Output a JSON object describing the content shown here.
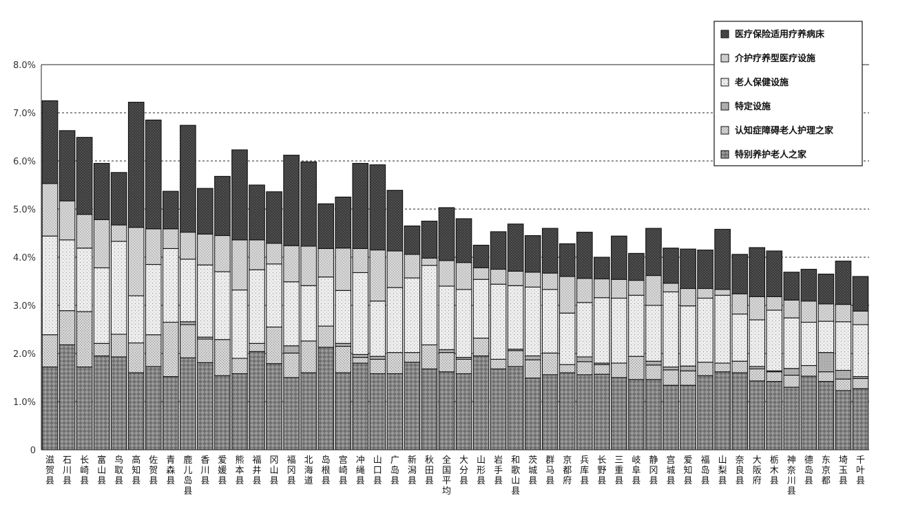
{
  "chart_data": {
    "type": "bar",
    "stacked": true,
    "categories": [
      "滋贺县",
      "石川县",
      "长崎县",
      "富山县",
      "鸟取县",
      "高知县",
      "佐贺县",
      "青森县",
      "鹿儿岛县",
      "香川县",
      "爱媛县",
      "熊本县",
      "福井县",
      "冈山县",
      "福冈县",
      "北海道",
      "岛根县",
      "宫崎县",
      "冲绳县",
      "山口县",
      "广岛县",
      "新潟县",
      "秋田县",
      "全国平均",
      "大分县",
      "山形县",
      "岩手县",
      "和歌山县",
      "茨城县",
      "群马县",
      "京都府",
      "兵库县",
      "长野县",
      "三重县",
      "岐阜县",
      "静冈县",
      "宫城县",
      "爱知县",
      "福岛县",
      "山梨县",
      "奈良县",
      "大阪府",
      "栃木县",
      "神奈川县",
      "德岛县",
      "东京都",
      "埼玉县",
      "千叶县"
    ],
    "series": [
      {
        "name": "特别养护老人之家",
        "color": "#8f8f8f",
        "pattern": "diamond",
        "values": [
          1.72,
          2.18,
          1.72,
          1.95,
          1.93,
          1.6,
          1.73,
          1.52,
          1.91,
          1.81,
          1.54,
          1.58,
          2.04,
          1.79,
          1.5,
          1.6,
          2.13,
          1.6,
          1.8,
          1.58,
          1.58,
          1.82,
          1.68,
          1.62,
          1.58,
          1.95,
          1.68,
          1.73,
          1.49,
          1.56,
          1.6,
          1.56,
          1.57,
          1.5,
          1.46,
          1.46,
          1.34,
          1.34,
          1.54,
          1.62,
          1.6,
          1.43,
          1.42,
          1.3,
          1.53,
          1.42,
          1.23,
          1.27
        ]
      },
      {
        "name": "认知症障碍老人护理之家",
        "color": "#c9c9c9",
        "pattern": "fine",
        "values": [
          0.67,
          0.71,
          1.15,
          0.26,
          0.47,
          0.62,
          0.66,
          1.13,
          0.69,
          0.49,
          0.75,
          0.32,
          0.17,
          0.76,
          0.51,
          0.66,
          0.44,
          0.55,
          0.12,
          0.3,
          0.44,
          0.2,
          0.5,
          0.4,
          0.3,
          0.37,
          0.2,
          0.33,
          0.38,
          0.45,
          0.17,
          0.27,
          0.2,
          0.3,
          0.48,
          0.3,
          0.32,
          0.3,
          0.28,
          0.18,
          0.24,
          0.25,
          0.2,
          0.25,
          0.22,
          0.2,
          0.24,
          0.21
        ]
      },
      {
        "name": "特定设施",
        "color": "#a8a8a8",
        "pattern": "solid",
        "values": [
          0.0,
          0.0,
          0.0,
          0.0,
          0.0,
          0.0,
          0.0,
          0.0,
          0.06,
          0.04,
          0.0,
          0.0,
          0.0,
          0.0,
          0.15,
          0.0,
          0.0,
          0.06,
          0.06,
          0.06,
          0.0,
          0.0,
          0.0,
          0.06,
          0.04,
          0.0,
          0.0,
          0.03,
          0.08,
          0.0,
          0.0,
          0.1,
          0.03,
          0.0,
          0.0,
          0.08,
          0.06,
          0.1,
          0.0,
          0.0,
          0.0,
          0.05,
          0.02,
          0.14,
          0.0,
          0.4,
          0.18,
          0.04
        ]
      },
      {
        "name": "老人保健设施",
        "color": "#e2e2e2",
        "pattern": "dots",
        "values": [
          2.05,
          1.47,
          1.32,
          1.57,
          1.93,
          0.98,
          1.46,
          1.53,
          1.3,
          1.5,
          1.41,
          1.42,
          1.53,
          1.31,
          1.33,
          1.15,
          1.02,
          1.1,
          1.7,
          1.15,
          1.35,
          1.55,
          1.65,
          1.32,
          1.41,
          1.22,
          1.56,
          1.32,
          1.43,
          1.32,
          1.07,
          1.13,
          1.36,
          1.35,
          1.27,
          1.16,
          1.56,
          1.25,
          1.33,
          1.41,
          0.98,
          0.97,
          1.26,
          1.05,
          0.9,
          0.65,
          1.01,
          1.08
        ]
      },
      {
        "name": "介护疗养型医疗设施",
        "color": "#d6d6d6",
        "pattern": "checker",
        "values": [
          1.09,
          0.81,
          0.7,
          1.0,
          0.34,
          1.42,
          0.74,
          0.41,
          0.56,
          0.64,
          0.75,
          1.04,
          0.62,
          0.43,
          0.75,
          0.82,
          0.59,
          0.88,
          0.5,
          1.06,
          0.76,
          0.49,
          0.15,
          0.53,
          0.56,
          0.24,
          0.31,
          0.3,
          0.31,
          0.34,
          0.76,
          0.5,
          0.39,
          0.39,
          0.31,
          0.62,
          0.18,
          0.36,
          0.2,
          0.12,
          0.42,
          0.48,
          0.28,
          0.37,
          0.44,
          0.36,
          0.36,
          0.28
        ]
      },
      {
        "name": "医疗保险适用疗养病床",
        "color": "#4a4a4a",
        "pattern": "dark",
        "values": [
          1.72,
          1.46,
          1.6,
          1.17,
          1.09,
          2.6,
          2.26,
          0.78,
          2.22,
          0.95,
          1.23,
          1.87,
          1.14,
          1.07,
          1.88,
          1.75,
          0.93,
          1.06,
          1.77,
          1.77,
          1.26,
          0.59,
          0.77,
          1.1,
          0.91,
          0.47,
          0.78,
          0.98,
          0.76,
          0.93,
          0.68,
          0.96,
          0.45,
          0.9,
          0.56,
          0.98,
          0.73,
          0.82,
          0.8,
          1.25,
          0.82,
          1.02,
          0.95,
          0.58,
          0.66,
          0.62,
          0.9,
          0.72
        ]
      }
    ],
    "ylim": [
      0,
      8
    ],
    "yticks": [
      "0",
      "1.0%",
      "2.0%",
      "3.0%",
      "4.0%",
      "5.0%",
      "6.0%",
      "7.0%",
      "8.0%"
    ],
    "grid": "dashed-horizontal",
    "legend": {
      "placement": "top-right",
      "items": [
        "医疗保险适用疗养病床",
        "介护疗养型医疗设施",
        "老人保健设施",
        "特定设施",
        "认知症障碍老人护理之家",
        "特别养护老人之家"
      ]
    },
    "xlabel": "",
    "ylabel": "",
    "title": ""
  }
}
